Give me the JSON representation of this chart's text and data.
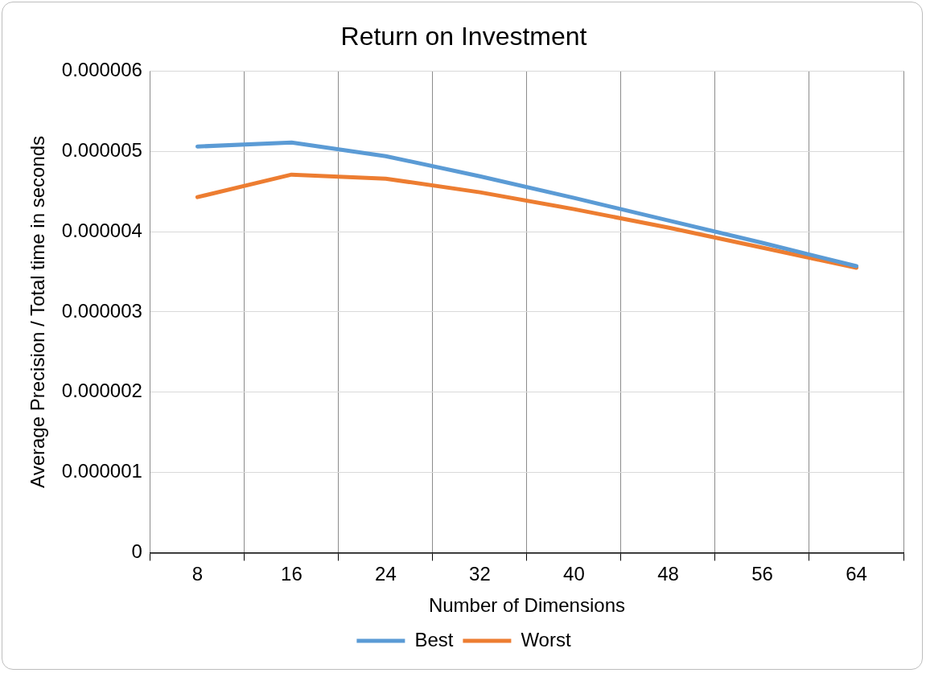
{
  "chart_data": {
    "type": "line",
    "title": "Return on Investment",
    "xlabel": "Number of Dimensions",
    "ylabel": "Average Precision / Total time in seconds",
    "categories": [
      "8",
      "16",
      "24",
      "32",
      "40",
      "48",
      "56",
      "64"
    ],
    "series": [
      {
        "name": "Best",
        "color": "#5b9bd5",
        "values": [
          5.06e-06,
          5.11e-06,
          4.94e-06,
          4.69e-06,
          4.42e-06,
          4.14e-06,
          3.86e-06,
          3.57e-06
        ]
      },
      {
        "name": "Worst",
        "color": "#ed7d31",
        "values": [
          4.43e-06,
          4.71e-06,
          4.66e-06,
          4.49e-06,
          4.28e-06,
          4.05e-06,
          3.8e-06,
          3.55e-06
        ]
      }
    ],
    "ylim": [
      0,
      6e-06
    ],
    "yticks": [
      {
        "value": 0,
        "label": "0"
      },
      {
        "value": 1e-06,
        "label": "0.000001"
      },
      {
        "value": 2e-06,
        "label": "0.000002"
      },
      {
        "value": 3e-06,
        "label": "0.000003"
      },
      {
        "value": 4e-06,
        "label": "0.000004"
      },
      {
        "value": 5e-06,
        "label": "0.000005"
      },
      {
        "value": 6e-06,
        "label": "0.000006"
      }
    ],
    "grid": true,
    "legend": "bottom",
    "marker": "none",
    "line_style": "solid"
  }
}
